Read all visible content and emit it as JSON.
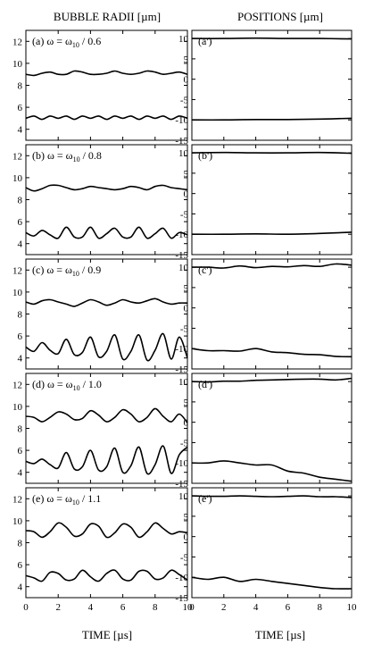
{
  "figure": {
    "left_title": "BUBBLE RADII  [µm]",
    "right_title": "POSITIONS  [µm]",
    "xlabel_left": "TIME  [µs]",
    "xlabel_right": "TIME  [µs]"
  },
  "chart_data": [
    {
      "type": "line",
      "panel": "(a) ω = ω₁₀ / 0.6",
      "panel_label": "(a) ω = ω",
      "label_sub": "10",
      "label_tail": " / 0.6",
      "xlim": [
        0,
        10
      ],
      "ylim": [
        3,
        13
      ],
      "yticks": [
        4,
        6,
        8,
        10,
        12
      ],
      "xticks": [
        0,
        2,
        4,
        6,
        8,
        10
      ],
      "series": [
        {
          "x": [
            0,
            0.5,
            1,
            1.5,
            2,
            2.5,
            3,
            3.5,
            4,
            4.5,
            5,
            5.5,
            6,
            6.5,
            7,
            7.5,
            8,
            8.5,
            9,
            9.5,
            10
          ],
          "values": [
            9.0,
            8.9,
            9.1,
            9.2,
            9.0,
            9.0,
            9.3,
            9.2,
            9.0,
            9.0,
            9.1,
            9.3,
            9.1,
            9.0,
            9.1,
            9.3,
            9.2,
            9.0,
            9.1,
            9.2,
            9.0
          ]
        },
        {
          "x": [
            0,
            0.5,
            1,
            1.5,
            2,
            2.5,
            3,
            3.5,
            4,
            4.5,
            5,
            5.5,
            6,
            6.5,
            7,
            7.5,
            8,
            8.5,
            9,
            9.5,
            10
          ],
          "values": [
            5.0,
            5.2,
            4.9,
            5.2,
            5.0,
            5.2,
            4.9,
            5.2,
            5.0,
            5.2,
            4.9,
            5.2,
            5.0,
            5.2,
            4.9,
            5.2,
            5.0,
            5.2,
            4.9,
            5.2,
            5.0
          ]
        }
      ]
    },
    {
      "type": "line",
      "panel": "(a')",
      "panel_label": "(a')",
      "xlim": [
        0,
        10
      ],
      "ylim": [
        -15,
        12
      ],
      "yticks": [
        -15,
        -10,
        -5,
        0,
        5,
        10
      ],
      "xticks": [
        0,
        2,
        4,
        6,
        8,
        10
      ],
      "series": [
        {
          "x": [
            0,
            2,
            4,
            6,
            8,
            10
          ],
          "values": [
            10.0,
            10.0,
            10.1,
            10.0,
            10.0,
            9.9
          ]
        },
        {
          "x": [
            0,
            2,
            4,
            6,
            8,
            10
          ],
          "values": [
            -10.0,
            -10.0,
            -9.9,
            -9.9,
            -9.8,
            -9.6
          ]
        }
      ]
    },
    {
      "type": "line",
      "panel": "(b) ω = ω₁₀ / 0.8",
      "panel_label": "(b) ω = ω",
      "label_sub": "10",
      "label_tail": " / 0.8",
      "xlim": [
        0,
        10
      ],
      "ylim": [
        3,
        13
      ],
      "yticks": [
        4,
        6,
        8,
        10,
        12
      ],
      "xticks": [
        0,
        2,
        4,
        6,
        8,
        10
      ],
      "series": [
        {
          "x": [
            0,
            0.5,
            1,
            1.5,
            2,
            2.5,
            3,
            3.5,
            4,
            4.5,
            5,
            5.5,
            6,
            6.5,
            7,
            7.5,
            8,
            8.5,
            9,
            9.5,
            10
          ],
          "values": [
            9.1,
            8.8,
            9.0,
            9.3,
            9.3,
            9.1,
            8.9,
            9.0,
            9.2,
            9.1,
            9.0,
            8.9,
            9.0,
            9.2,
            9.1,
            8.9,
            9.2,
            9.3,
            9.1,
            9.0,
            8.9
          ]
        },
        {
          "x": [
            0,
            0.5,
            1,
            1.5,
            2,
            2.5,
            3,
            3.5,
            4,
            4.5,
            5,
            5.5,
            6,
            6.5,
            7,
            7.5,
            8,
            8.5,
            9,
            9.5,
            10
          ],
          "values": [
            5.0,
            4.7,
            5.2,
            4.8,
            4.5,
            5.5,
            4.6,
            4.6,
            5.5,
            4.5,
            4.9,
            5.4,
            4.6,
            4.6,
            5.5,
            4.5,
            4.9,
            5.4,
            4.5,
            5.0,
            4.8
          ]
        }
      ]
    },
    {
      "type": "line",
      "panel": "(b')",
      "panel_label": "(b')",
      "xlim": [
        0,
        10
      ],
      "ylim": [
        -15,
        12
      ],
      "yticks": [
        -15,
        -10,
        -5,
        0,
        5,
        10
      ],
      "xticks": [
        0,
        2,
        4,
        6,
        8,
        10
      ],
      "series": [
        {
          "x": [
            0,
            2,
            4,
            6,
            8,
            10
          ],
          "values": [
            10.0,
            10.1,
            10.0,
            10.0,
            10.1,
            9.9
          ]
        },
        {
          "x": [
            0,
            2,
            4,
            6,
            8,
            10
          ],
          "values": [
            -10.0,
            -10.0,
            -9.9,
            -10.0,
            -9.8,
            -9.5
          ]
        }
      ]
    },
    {
      "type": "line",
      "panel": "(c) ω = ω₁₀ / 0.9",
      "panel_label": "(c) ω = ω",
      "label_sub": "10",
      "label_tail": " / 0.9",
      "xlim": [
        0,
        10
      ],
      "ylim": [
        3,
        13
      ],
      "yticks": [
        4,
        6,
        8,
        10,
        12
      ],
      "xticks": [
        0,
        2,
        4,
        6,
        8,
        10
      ],
      "series": [
        {
          "x": [
            0,
            0.5,
            1,
            1.5,
            2,
            2.5,
            3,
            3.5,
            4,
            4.5,
            5,
            5.5,
            6,
            6.5,
            7,
            7.5,
            8,
            8.5,
            9,
            9.5,
            10
          ],
          "values": [
            9.1,
            8.9,
            9.2,
            9.3,
            9.1,
            8.9,
            8.7,
            9.0,
            9.3,
            9.1,
            8.8,
            9.0,
            9.3,
            9.1,
            9.0,
            9.2,
            9.4,
            9.1,
            8.9,
            9.0,
            9.0
          ]
        },
        {
          "x": [
            0,
            0.5,
            1,
            1.5,
            2,
            2.5,
            3,
            3.5,
            4,
            4.5,
            5,
            5.5,
            6,
            6.5,
            7,
            7.5,
            8,
            8.5,
            9,
            9.5,
            10
          ],
          "values": [
            5.0,
            4.6,
            5.4,
            4.7,
            4.4,
            5.7,
            4.3,
            4.5,
            5.9,
            4.1,
            4.6,
            6.1,
            3.9,
            4.6,
            6.1,
            3.8,
            4.7,
            6.2,
            3.9,
            5.9,
            4.0
          ]
        }
      ]
    },
    {
      "type": "line",
      "panel": "(c')",
      "panel_label": "(c')",
      "xlim": [
        0,
        10
      ],
      "ylim": [
        -15,
        12
      ],
      "yticks": [
        -15,
        -10,
        -5,
        0,
        5,
        10
      ],
      "xticks": [
        0,
        2,
        4,
        6,
        8,
        10
      ],
      "series": [
        {
          "x": [
            0,
            1,
            2,
            3,
            4,
            5,
            6,
            7,
            8,
            9,
            10
          ],
          "values": [
            10.0,
            10.0,
            9.8,
            10.3,
            9.9,
            10.2,
            10.1,
            10.4,
            10.2,
            10.8,
            10.5
          ]
        },
        {
          "x": [
            0,
            1,
            2,
            3,
            4,
            5,
            6,
            7,
            8,
            9,
            10
          ],
          "values": [
            -10.0,
            -10.5,
            -10.5,
            -10.6,
            -10.0,
            -10.8,
            -11.0,
            -11.4,
            -11.5,
            -11.9,
            -12.0
          ]
        }
      ]
    },
    {
      "type": "line",
      "panel": "(d) ω = ω₁₀ / 1.0",
      "panel_label": "(d) ω = ω",
      "label_sub": "10",
      "label_tail": " / 1.0",
      "xlim": [
        0,
        10
      ],
      "ylim": [
        3,
        13
      ],
      "yticks": [
        4,
        6,
        8,
        10,
        12
      ],
      "xticks": [
        0,
        2,
        4,
        6,
        8,
        10
      ],
      "series": [
        {
          "x": [
            0,
            0.5,
            1,
            1.5,
            2,
            2.5,
            3,
            3.5,
            4,
            4.5,
            5,
            5.5,
            6,
            6.5,
            7,
            7.5,
            8,
            8.5,
            9,
            9.5,
            10
          ],
          "values": [
            9.1,
            9.0,
            8.6,
            9.0,
            9.5,
            9.3,
            8.8,
            8.9,
            9.6,
            9.2,
            8.6,
            9.0,
            9.7,
            9.3,
            8.6,
            9.0,
            9.8,
            9.1,
            8.6,
            9.3,
            8.5
          ]
        },
        {
          "x": [
            0,
            0.5,
            1,
            1.5,
            2,
            2.5,
            3,
            3.5,
            4,
            4.5,
            5,
            5.5,
            6,
            6.5,
            7,
            7.5,
            8,
            8.5,
            9,
            9.5,
            10
          ],
          "values": [
            5.0,
            4.8,
            5.2,
            4.7,
            4.4,
            5.8,
            4.3,
            4.5,
            6.0,
            4.2,
            4.5,
            6.2,
            4.0,
            4.6,
            6.3,
            3.9,
            4.7,
            6.4,
            3.9,
            5.6,
            6.3
          ]
        }
      ]
    },
    {
      "type": "line",
      "panel": "(d')",
      "panel_label": "(d')",
      "xlim": [
        0,
        10
      ],
      "ylim": [
        -15,
        12
      ],
      "yticks": [
        -15,
        -10,
        -5,
        0,
        5,
        10
      ],
      "xticks": [
        0,
        2,
        4,
        6,
        8,
        10
      ],
      "series": [
        {
          "x": [
            0,
            1,
            2,
            3,
            4,
            5,
            6,
            7,
            8,
            9,
            10
          ],
          "values": [
            10.0,
            9.9,
            10.1,
            10.1,
            10.3,
            10.4,
            10.5,
            10.6,
            10.6,
            10.4,
            10.8
          ]
        },
        {
          "x": [
            0,
            1,
            2,
            3,
            4,
            5,
            6,
            7,
            8,
            9,
            10
          ],
          "values": [
            -10.0,
            -10.0,
            -9.5,
            -10.0,
            -10.5,
            -10.5,
            -12.0,
            -12.5,
            -13.5,
            -14.0,
            -14.5
          ]
        }
      ]
    },
    {
      "type": "line",
      "panel": "(e) ω = ω₁₀ / 1.1",
      "panel_label": "(e) ω = ω",
      "label_sub": "10",
      "label_tail": " / 1.1",
      "xlim": [
        0,
        10
      ],
      "ylim": [
        3,
        13
      ],
      "yticks": [
        4,
        6,
        8,
        10,
        12
      ],
      "xticks": [
        0,
        2,
        4,
        6,
        8,
        10
      ],
      "series": [
        {
          "x": [
            0,
            0.5,
            1,
            1.5,
            2,
            2.5,
            3,
            3.5,
            4,
            4.5,
            5,
            5.5,
            6,
            6.5,
            7,
            7.5,
            8,
            8.5,
            9,
            9.5,
            10
          ],
          "values": [
            9.1,
            9.0,
            8.5,
            9.0,
            9.8,
            9.4,
            8.6,
            8.8,
            9.7,
            9.5,
            8.5,
            8.9,
            9.7,
            9.4,
            8.5,
            9.0,
            9.8,
            9.3,
            8.8,
            9.0,
            8.9
          ]
        },
        {
          "x": [
            0,
            0.5,
            1,
            1.5,
            2,
            2.5,
            3,
            3.5,
            4,
            4.5,
            5,
            5.5,
            6,
            6.5,
            7,
            7.5,
            8,
            8.5,
            9,
            9.5,
            10
          ],
          "values": [
            5.0,
            4.8,
            4.5,
            5.3,
            5.2,
            4.6,
            4.7,
            5.5,
            4.9,
            4.5,
            5.2,
            5.5,
            4.7,
            4.6,
            5.4,
            5.4,
            4.7,
            4.8,
            5.5,
            5.1,
            4.6
          ]
        }
      ]
    },
    {
      "type": "line",
      "panel": "(e')",
      "panel_label": "(e')",
      "xlim": [
        0,
        10
      ],
      "ylim": [
        -15,
        12
      ],
      "yticks": [
        -15,
        -10,
        -5,
        0,
        5,
        10
      ],
      "xticks": [
        0,
        2,
        4,
        6,
        8,
        10
      ],
      "series": [
        {
          "x": [
            0,
            1,
            2,
            3,
            4,
            5,
            6,
            7,
            8,
            9,
            10
          ],
          "values": [
            10.0,
            9.9,
            9.9,
            10.0,
            9.9,
            9.8,
            9.9,
            10.0,
            9.8,
            9.8,
            9.6
          ]
        },
        {
          "x": [
            0,
            1,
            2,
            3,
            4,
            5,
            6,
            7,
            8,
            9,
            10
          ],
          "values": [
            -10.0,
            -10.5,
            -10.0,
            -11.0,
            -10.5,
            -11.0,
            -11.5,
            -12.0,
            -12.5,
            -12.8,
            -12.8
          ]
        }
      ]
    }
  ]
}
